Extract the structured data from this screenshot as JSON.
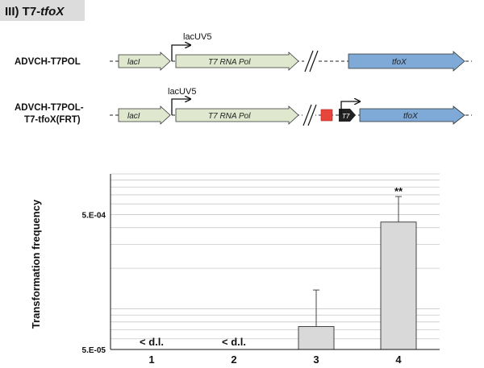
{
  "panel": {
    "label_prefix": "III) T7-",
    "label_italic": "tfoX",
    "background": "#dcdcdc"
  },
  "constructs": [
    {
      "name_lines": [
        "ADVCH-T7POL"
      ],
      "genes": [
        {
          "label": "lacI",
          "color": "#dfe8cf"
        },
        {
          "label": "T7 RNA Pol",
          "color": "#dfe8cf"
        },
        {
          "label": "tfoX",
          "color": "#7fa9d6"
        }
      ],
      "promoters": [
        "lacUV5"
      ]
    },
    {
      "name_lines": [
        "ADVCH-T7POL-",
        "T7-tfoX(FRT)"
      ],
      "genes": [
        {
          "label": "lacI",
          "color": "#dfe8cf"
        },
        {
          "label": "T7 RNA Pol",
          "color": "#dfe8cf"
        },
        {
          "label": "tfoX",
          "color": "#7fa9d6"
        }
      ],
      "promoters": [
        "lacUV5",
        "T7"
      ],
      "frt_color": "#e8443a",
      "t7_color": "#222222"
    }
  ],
  "chart_data": {
    "type": "bar",
    "categories": [
      "1",
      "2",
      "3",
      "4"
    ],
    "values": [
      null,
      null,
      7.4e-05,
      0.00044
    ],
    "error_upper": [
      null,
      null,
      0.000138,
      0.00068
    ],
    "value_labels": [
      "< d.l.",
      "< d.l.",
      "",
      ""
    ],
    "annotations": [
      "",
      "",
      "",
      "**"
    ],
    "ylabel": "Transformation frequency",
    "y_scale": "log",
    "ylim": [
      5e-05,
      0.001
    ],
    "y_tick_labels": [
      {
        "value": 5e-05,
        "label": "5.E-05"
      },
      {
        "value": 0.0005,
        "label": "5.E-04"
      }
    ],
    "bar_color": "#d9d9d9",
    "grid": true
  }
}
